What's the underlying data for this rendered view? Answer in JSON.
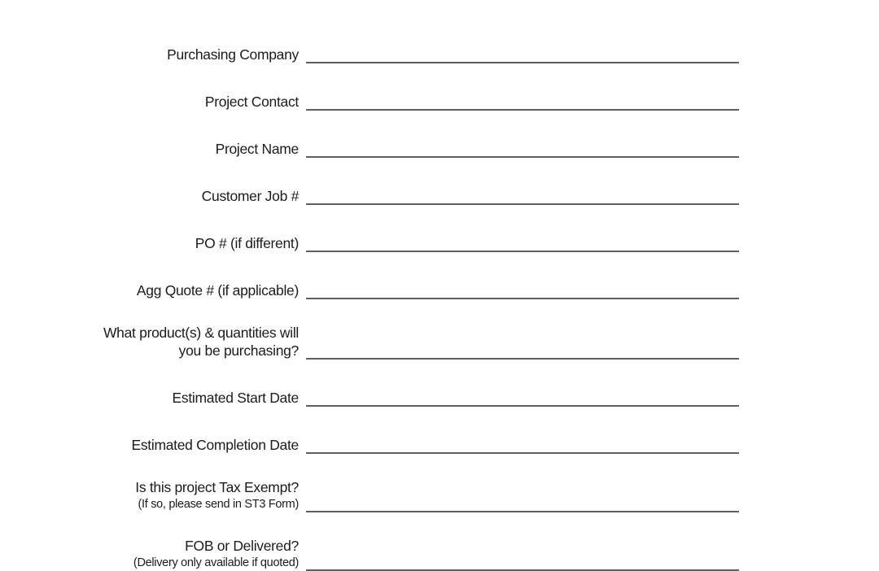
{
  "colors": {
    "background": "#ffffff",
    "label_text": "#1c1c1c",
    "field_line": "#5f5f5f"
  },
  "form": {
    "rows": [
      {
        "label": "Purchasing Company",
        "value": ""
      },
      {
        "label": "Project Contact",
        "value": ""
      },
      {
        "label": "Project Name",
        "value": ""
      },
      {
        "label": "Customer Job #",
        "value": ""
      },
      {
        "label": "PO # (if different)",
        "value": ""
      },
      {
        "label": "Agg Quote # (if applicable)",
        "value": ""
      },
      {
        "label": "What product(s) & quantities will",
        "label2": "you be purchasing?",
        "value": ""
      },
      {
        "label": "Estimated Start Date",
        "value": ""
      },
      {
        "label": "Estimated Completion Date",
        "value": ""
      },
      {
        "label": "Is this project Tax Exempt?",
        "hint": "(If so, please send in ST3 Form)",
        "value": ""
      },
      {
        "label": "FOB or Delivered?",
        "hint": "(Delivery only available if quoted)",
        "value": ""
      }
    ]
  }
}
